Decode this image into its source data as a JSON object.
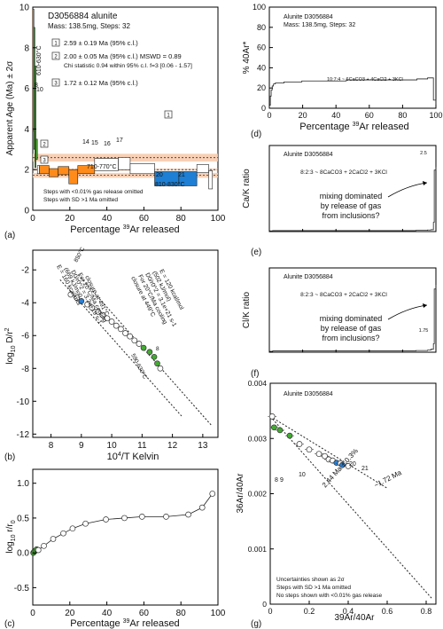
{
  "figure": "D3056884 alunite",
  "panels": {
    "a": {
      "tag": "(a)",
      "title": "D3056884 alunite",
      "subtitle": "Mass: 138.5mg, Steps: 32",
      "ylabel": "Apparent Age (Ma) ± 2σ",
      "xlabel_pre": "Percentage ",
      "xlabel_sup": "39",
      "xlabel_post": "Ar released",
      "xticks": [
        "0",
        "20",
        "40",
        "60",
        "80",
        "100"
      ],
      "yticks": [
        "0",
        "2",
        "4",
        "6",
        "8",
        "10"
      ],
      "legend": [
        {
          "num": "1",
          "text": "2.59 ± 0.19 Ma (95% c.l.)"
        },
        {
          "num": "2",
          "text": "2.00 ± 0.05 Ma (95% c.l.) MSWD = 0.89"
        },
        {
          "num": "2b",
          "text": "Chi statistic 0.94 within 95% c.l. f=3 [0.06 - 1.57]"
        },
        {
          "num": "3",
          "text": "1.72 ± 0.12 Ma (95% c.l.)"
        }
      ],
      "annotations": {
        "t630": "610-630°C",
        "t8": "8",
        "t9": "9",
        "t10": "10",
        "t14": "14",
        "t15": "15",
        "t16": "16",
        "t17": "17",
        "t20": "20",
        "t21": "21",
        "t710": "710-770°C",
        "t810": "810-830°C",
        "b1": "1",
        "b2": "2",
        "b3": "3"
      },
      "footnote1": "Steps with <0.01% gas release omitted",
      "footnote2": "Steps with SD >1 Ma omitted"
    },
    "b": {
      "tag": "(b)",
      "ylabel_pre": "log",
      "ylabel_sub": "10",
      "ylabel_mid": " D/r",
      "ylabel_sup": "2",
      "xlabel_pre": "10",
      "xlabel_sup": "4",
      "xlabel_post": "/T Kelvin",
      "xticks": [
        "8",
        "9",
        "10",
        "11",
        "12",
        "13"
      ],
      "yticks": [
        "-2",
        "-4",
        "-6",
        "-8",
        "-10",
        "-12"
      ],
      "ann_left": [
        "E = 160 kcal/mol",
        "(669 kJ/mol)",
        "D0/r0^2 = 3.2e+19 s-1",
        "For 20°C/Ma cooling",
        "closure at 491°C"
      ],
      "ann_right": [
        "E = 120 kcal/mol",
        "(502 kJ/mol)",
        "D0/r0^2 = 3.1e+21 s-1",
        "For 20°C/Ma cooling",
        "closure at 449°C"
      ],
      "t850": "850°C",
      "t590": "590-630°C",
      "t8": "8"
    },
    "c": {
      "tag": "(c)",
      "ylabel_pre": "log",
      "ylabel_sub": "10",
      "ylabel_post": " r/r",
      "ylabel_sub2": "0",
      "xlabel_pre": "Percentage ",
      "xlabel_sup": "39",
      "xlabel_post": "Ar released",
      "xticks": [
        "0",
        "20",
        "40",
        "60",
        "80",
        "100"
      ],
      "yticks": [
        "1.0",
        "0.5",
        "0.0",
        "-0.5"
      ]
    },
    "d": {
      "tag": "(d)",
      "title": "Alunite D3056884",
      "subtitle": "Mass: 138.5mg, Steps: 32",
      "ylabel": "% 40Ar*",
      "xlabel_pre": "Percentage ",
      "xlabel_sup": "39",
      "xlabel_post": "Ar released",
      "xticks": [
        "0",
        "20",
        "40",
        "60",
        "80",
        "100"
      ],
      "yticks": [
        "0",
        "20",
        "40",
        "60",
        "80",
        "100"
      ],
      "inner": "10:7:4 ~ 6CaCO3 + 4CaCl2 + 3KCl"
    },
    "e": {
      "tag": "(e)",
      "title": "Alunite D3056884",
      "ylabel": "Ca/K ratio",
      "inner": "8:2:3 ~ 8CaCO3 + 2CaCl2 + 3KCl",
      "note": [
        "mixing dominated",
        "by release of gas",
        "from inclusions?"
      ],
      "peak": "2.5"
    },
    "f": {
      "tag": "(f)",
      "title": "Alunite D3056884",
      "ylabel": "Cl/K ratio",
      "inner": "8:2:3 ~ 8CaCO3 + 2CaCl2 + 3KCl",
      "note": [
        "mixing dominated",
        "by release of gas",
        "from inclusions?"
      ],
      "peak": "1.75"
    },
    "g": {
      "tag": "(g)",
      "title": "Alunite D3056884",
      "ylabel": "36Ar/40Ar",
      "xlabel": "39Ar/40Ar",
      "xticks": [
        "0",
        "0.2",
        "0.4",
        "0.6",
        "0.8"
      ],
      "yticks": [
        "0",
        "0.001",
        "0.002",
        "0.003",
        "0.004"
      ],
      "line1": "~1.72 Ma",
      "line2": "2.44 Ma ± 0.3%",
      "labels": [
        "8",
        "9",
        "10",
        "20",
        "21"
      ],
      "foot": [
        "Uncertainties shown as 2σ",
        "Steps with SD >1 Ma omitted",
        "No steps shown with <0.01% gas release"
      ]
    }
  },
  "chart_data": [
    {
      "type": "bar",
      "panel": "a",
      "title": "D3056884 alunite",
      "xlabel": "Percentage 39Ar released",
      "ylabel": "Apparent Age (Ma) ± 2σ",
      "xlim": [
        0,
        100
      ],
      "ylim": [
        0,
        10
      ],
      "steps": [
        {
          "x0": 0.0,
          "x1": 0.6,
          "age": 6.9,
          "err": 3.0,
          "color": "#ff8c1a"
        },
        {
          "x0": 0.6,
          "x1": 1.1,
          "age": 6.0,
          "err": 3.0,
          "color": "#55bb33"
        },
        {
          "x0": 1.1,
          "x1": 1.7,
          "age": 4.6,
          "err": 2.5,
          "color": "#55bb33"
        },
        {
          "x0": 1.7,
          "x1": 2.5,
          "age": 3.0,
          "err": 0.5,
          "color": "#55bb33"
        },
        {
          "x0": 2.5,
          "x1": 3.6,
          "age": 2.0,
          "err": 0.2,
          "color": "#ffffff"
        },
        {
          "x0": 3.6,
          "x1": 8.8,
          "age": 2.0,
          "err": 0.2,
          "color": "#ff8c1a"
        },
        {
          "x0": 8.8,
          "x1": 13.7,
          "age": 1.85,
          "err": 0.2,
          "color": "#ff8c1a"
        },
        {
          "x0": 13.7,
          "x1": 19.5,
          "age": 1.95,
          "err": 0.2,
          "color": "#ff8c1a"
        },
        {
          "x0": 19.5,
          "x1": 24.3,
          "age": 1.65,
          "err": 0.35,
          "color": "#ff8c1a"
        },
        {
          "x0": 24.3,
          "x1": 33.4,
          "age": 2.0,
          "err": 0.2,
          "color": "#ff8c1a"
        },
        {
          "x0": 33.4,
          "x1": 46.2,
          "age": 2.25,
          "err": 0.3,
          "color": "#ffffff"
        },
        {
          "x0": 46.2,
          "x1": 52.6,
          "age": 2.3,
          "err": 0.3,
          "color": "#ffffff"
        },
        {
          "x0": 52.6,
          "x1": 65.8,
          "age": 2.05,
          "err": 0.25,
          "color": "#ffffff"
        },
        {
          "x0": 65.8,
          "x1": 78.9,
          "age": 1.55,
          "err": 0.35,
          "color": "#1e7fd4"
        },
        {
          "x0": 78.9,
          "x1": 88.6,
          "age": 1.55,
          "err": 0.35,
          "color": "#1e7fd4"
        },
        {
          "x0": 88.6,
          "x1": 95.0,
          "age": 2.05,
          "err": 0.2,
          "color": "#ffffff"
        },
        {
          "x0": 95.0,
          "x1": 97.0,
          "age": 1.5,
          "err": 0.45,
          "color": "#ffffff"
        }
      ],
      "bands": [
        {
          "name": "1",
          "center": 2.59,
          "err": 0.19
        },
        {
          "name": "2",
          "center": 2.0,
          "err": 0.05
        },
        {
          "name": "3",
          "center": 1.72,
          "err": 0.12
        }
      ]
    },
    {
      "type": "scatter",
      "panel": "b",
      "xlabel": "10^4/T Kelvin",
      "ylabel": "log10 D/r^2",
      "xlim": [
        7.4,
        13.5
      ],
      "ylim": [
        -12.2,
        -0.8
      ],
      "points": [
        {
          "x": 8.65,
          "y": -3.5,
          "c": "open"
        },
        {
          "x": 8.85,
          "y": -3.7,
          "c": "open"
        },
        {
          "x": 9.0,
          "y": -3.9,
          "c": "blue"
        },
        {
          "x": 9.2,
          "y": -4.1,
          "c": "open"
        },
        {
          "x": 9.35,
          "y": -4.3,
          "c": "open"
        },
        {
          "x": 9.55,
          "y": -4.55,
          "c": "open"
        },
        {
          "x": 9.7,
          "y": -4.75,
          "c": "open"
        },
        {
          "x": 9.85,
          "y": -4.95,
          "c": "open"
        },
        {
          "x": 10.0,
          "y": -5.15,
          "c": "open"
        },
        {
          "x": 10.15,
          "y": -5.4,
          "c": "open"
        },
        {
          "x": 10.3,
          "y": -5.6,
          "c": "open"
        },
        {
          "x": 10.45,
          "y": -5.85,
          "c": "open"
        },
        {
          "x": 10.6,
          "y": -6.05,
          "c": "open"
        },
        {
          "x": 10.75,
          "y": -6.3,
          "c": "open"
        },
        {
          "x": 10.9,
          "y": -6.5,
          "c": "open"
        },
        {
          "x": 11.05,
          "y": -6.75,
          "c": "green"
        },
        {
          "x": 11.25,
          "y": -7.0,
          "c": "green"
        },
        {
          "x": 11.4,
          "y": -7.3,
          "c": "green"
        },
        {
          "x": 11.5,
          "y": -7.7,
          "c": "green"
        },
        {
          "x": 11.6,
          "y": -8.0,
          "c": "open"
        }
      ],
      "lines": [
        {
          "name": "E = 160 kcal/mol",
          "x": [
            8.3,
            12.3
          ],
          "y": [
            -2.6,
            -10.9
          ]
        },
        {
          "name": "E = 120 kcal/mol",
          "x": [
            8.9,
            13.3
          ],
          "y": [
            -2.3,
            -11.5
          ]
        }
      ]
    },
    {
      "type": "scatter",
      "panel": "c",
      "xlabel": "Percentage 39Ar released",
      "ylabel": "log10 r/r0",
      "xlim": [
        0,
        100
      ],
      "ylim": [
        -0.75,
        1.2
      ],
      "points": [
        {
          "x": 0.3,
          "y": 0.0,
          "c": "green"
        },
        {
          "x": 0.8,
          "y": 0.02,
          "c": "green"
        },
        {
          "x": 1.4,
          "y": 0.03,
          "c": "green"
        },
        {
          "x": 2.1,
          "y": 0.05,
          "c": "green"
        },
        {
          "x": 3.0,
          "y": 0.04,
          "c": "open"
        },
        {
          "x": 6.0,
          "y": 0.1,
          "c": "open"
        },
        {
          "x": 11.0,
          "y": 0.2,
          "c": "open"
        },
        {
          "x": 16.5,
          "y": 0.28,
          "c": "open"
        },
        {
          "x": 21.5,
          "y": 0.35,
          "c": "open"
        },
        {
          "x": 28.5,
          "y": 0.42,
          "c": "open"
        },
        {
          "x": 39.5,
          "y": 0.48,
          "c": "open"
        },
        {
          "x": 49.5,
          "y": 0.5,
          "c": "open"
        },
        {
          "x": 59.0,
          "y": 0.52,
          "c": "open"
        },
        {
          "x": 72.0,
          "y": 0.52,
          "c": "open"
        },
        {
          "x": 84.0,
          "y": 0.55,
          "c": "open"
        },
        {
          "x": 91.5,
          "y": 0.65,
          "c": "open"
        },
        {
          "x": 97.0,
          "y": 0.85,
          "c": "open"
        }
      ]
    },
    {
      "type": "line",
      "panel": "d",
      "xlabel": "Percentage 39Ar released",
      "ylabel": "% 40Ar*",
      "xlim": [
        0,
        100
      ],
      "ylim": [
        0,
        100
      ],
      "x": [
        0,
        0.6,
        1.1,
        1.7,
        2.5,
        3.6,
        8.8,
        13.7,
        19.5,
        24.3,
        33.4,
        46.2,
        52.6,
        65.8,
        78.9,
        88.6,
        95.0,
        97.0,
        98.5,
        100
      ],
      "y": [
        3,
        12,
        18,
        22,
        24,
        25,
        26,
        26,
        27,
        27,
        27,
        28,
        28,
        28,
        28,
        29,
        30,
        30,
        8,
        2
      ]
    },
    {
      "type": "line",
      "panel": "e",
      "ylabel": "Ca/K ratio",
      "xlim": [
        0,
        100
      ],
      "ylim": [
        0,
        2.8
      ],
      "x": [
        0,
        2,
        10,
        30,
        50,
        70,
        88,
        95,
        97,
        98.5,
        99,
        100
      ],
      "y": [
        0.02,
        0.03,
        0.03,
        0.03,
        0.03,
        0.03,
        0.04,
        0.05,
        0.06,
        0.3,
        2.0,
        2.1
      ]
    },
    {
      "type": "line",
      "panel": "f",
      "ylabel": "Cl/K ratio",
      "xlim": [
        0,
        100
      ],
      "ylim": [
        0,
        2.0
      ],
      "x": [
        0,
        2,
        10,
        30,
        50,
        70,
        88,
        95,
        97,
        98.5,
        99,
        100
      ],
      "y": [
        0.02,
        0.03,
        0.03,
        0.03,
        0.03,
        0.03,
        0.04,
        0.05,
        0.07,
        0.2,
        1.5,
        1.6
      ]
    },
    {
      "type": "scatter",
      "panel": "g",
      "xlabel": "39Ar/40Ar",
      "ylabel": "36Ar/40Ar",
      "xlim": [
        0,
        0.85
      ],
      "ylim": [
        0,
        0.004
      ],
      "points": [
        {
          "x": 0.01,
          "y": 0.0034,
          "c": "open"
        },
        {
          "x": 0.02,
          "y": 0.0032,
          "c": "green"
        },
        {
          "x": 0.05,
          "y": 0.00315,
          "c": "green"
        },
        {
          "x": 0.1,
          "y": 0.00305,
          "c": "green"
        },
        {
          "x": 0.15,
          "y": 0.0029,
          "c": "open"
        },
        {
          "x": 0.2,
          "y": 0.0028,
          "c": "open"
        },
        {
          "x": 0.25,
          "y": 0.00272,
          "c": "open"
        },
        {
          "x": 0.28,
          "y": 0.00268,
          "c": "open"
        },
        {
          "x": 0.3,
          "y": 0.00262,
          "c": "open"
        },
        {
          "x": 0.32,
          "y": 0.0026,
          "c": "open"
        },
        {
          "x": 0.34,
          "y": 0.00256,
          "c": "blue"
        },
        {
          "x": 0.36,
          "y": 0.00255,
          "c": "open"
        },
        {
          "x": 0.37,
          "y": 0.00252,
          "c": "blue"
        },
        {
          "x": 0.4,
          "y": 0.0025,
          "c": "open"
        }
      ],
      "lines": [
        {
          "name": "~1.72 Ma",
          "x": [
            0.0,
            0.6
          ],
          "y": [
            0.0034,
            0.0021
          ]
        },
        {
          "name": "2.44 Ma ± 0.3%",
          "x": [
            0.0,
            0.83
          ],
          "y": [
            0.0034,
            0.0001
          ]
        }
      ]
    }
  ]
}
